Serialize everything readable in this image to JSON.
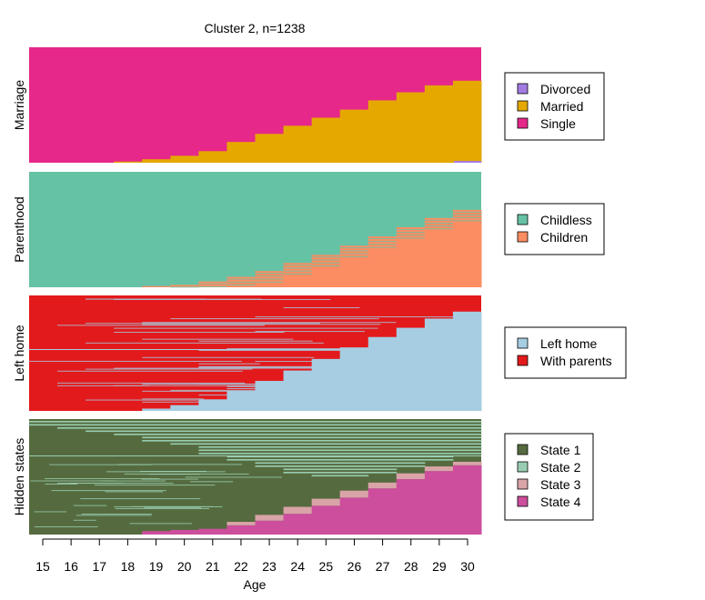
{
  "chart_data": {
    "type": "heatmap",
    "subtype": "sequence-index-plot",
    "title": "Cluster 2, n=1238",
    "xlabel": "Age",
    "x_ticks": [
      "15",
      "16",
      "17",
      "18",
      "19",
      "20",
      "21",
      "22",
      "23",
      "24",
      "25",
      "26",
      "27",
      "28",
      "29",
      "30"
    ],
    "xlim": [
      15,
      30
    ],
    "panels": [
      {
        "name": "Marriage",
        "states": [
          {
            "label": "Divorced",
            "color": "#a27ce3"
          },
          {
            "label": "Married",
            "color": "#e5a800"
          },
          {
            "label": "Single",
            "color": "#e6288a"
          }
        ],
        "share_of_second_state_by_age": [
          0.0,
          0.0,
          0.0,
          0.01,
          0.03,
          0.06,
          0.1,
          0.18,
          0.25,
          0.32,
          0.39,
          0.46,
          0.54,
          0.61,
          0.67,
          0.71
        ]
      },
      {
        "name": "Parenthood",
        "states": [
          {
            "label": "Childless",
            "color": "#66c2a5"
          },
          {
            "label": "Children",
            "color": "#fc8d62"
          }
        ],
        "share_of_second_state_by_age": [
          0.0,
          0.0,
          0.0,
          0.0,
          0.01,
          0.02,
          0.05,
          0.09,
          0.14,
          0.21,
          0.28,
          0.36,
          0.44,
          0.52,
          0.6,
          0.67
        ]
      },
      {
        "name": "Left home",
        "states": [
          {
            "label": "Left home",
            "color": "#a6cde2"
          },
          {
            "label": "With parents",
            "color": "#e31a1c"
          }
        ],
        "share_of_first_state_by_age": [
          0.0,
          0.0,
          0.0,
          0.0,
          0.02,
          0.05,
          0.1,
          0.17,
          0.26,
          0.35,
          0.45,
          0.55,
          0.64,
          0.72,
          0.8,
          0.86
        ]
      },
      {
        "name": "Hidden states",
        "states": [
          {
            "label": "State 1",
            "color": "#556b3f"
          },
          {
            "label": "State 2",
            "color": "#99cdb1"
          },
          {
            "label": "State 3",
            "color": "#d9a4a8"
          },
          {
            "label": "State 4",
            "color": "#cc4e9c"
          }
        ]
      }
    ]
  }
}
